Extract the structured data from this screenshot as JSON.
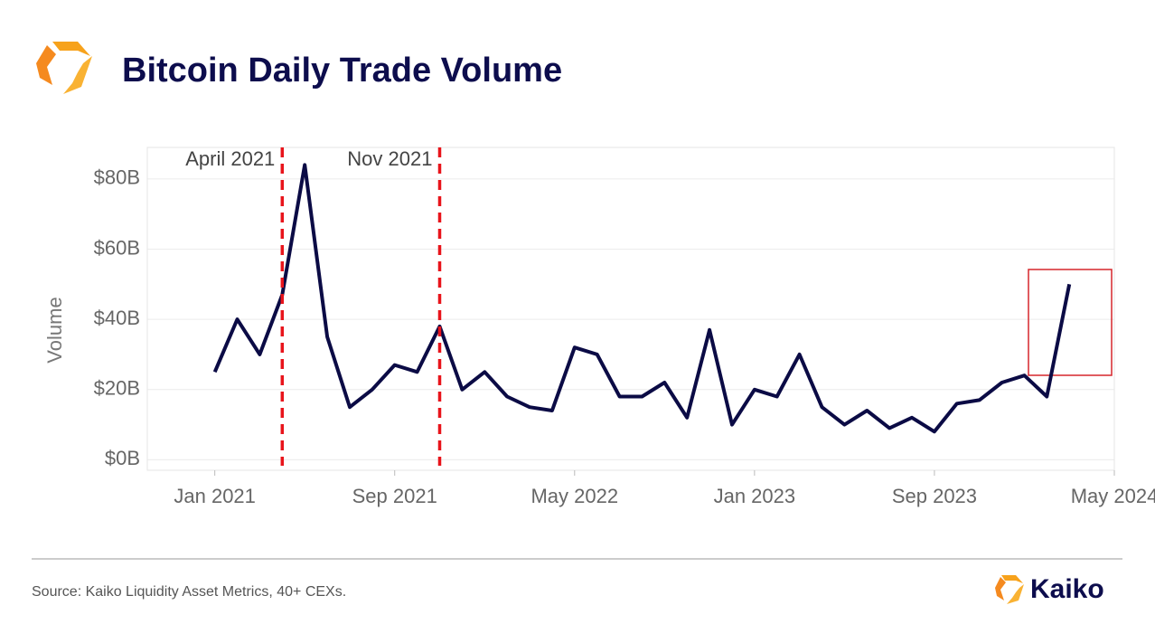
{
  "chart_data": {
    "type": "line",
    "title": "Bitcoin Daily Trade Volume",
    "y_label": "Volume",
    "source": "Source: Kaiko Liquidity Asset Metrics, 40+ CEXs.",
    "brand": "Kaiko",
    "x": [
      "2021-01",
      "2021-02",
      "2021-03",
      "2021-04",
      "2021-05",
      "2021-06",
      "2021-07",
      "2021-08",
      "2021-09",
      "2021-10",
      "2021-11",
      "2021-12",
      "2022-01",
      "2022-02",
      "2022-03",
      "2022-04",
      "2022-05",
      "2022-06",
      "2022-07",
      "2022-08",
      "2022-09",
      "2022-10",
      "2022-11",
      "2022-12",
      "2023-01",
      "2023-02",
      "2023-03",
      "2023-04",
      "2023-05",
      "2023-06",
      "2023-07",
      "2023-08",
      "2023-09",
      "2023-10",
      "2023-11",
      "2023-12",
      "2024-01",
      "2024-02",
      "2024-03"
    ],
    "series": [
      {
        "name": "Volume",
        "color": "#0b0b45",
        "values": [
          25,
          40,
          30,
          47,
          84,
          35,
          15,
          20,
          27,
          25,
          38,
          20,
          25,
          18,
          15,
          14,
          32,
          30,
          18,
          18,
          22,
          12,
          37,
          10,
          20,
          18,
          30,
          15,
          10,
          14,
          9,
          12,
          8,
          16,
          17,
          22,
          24,
          18,
          50
        ]
      }
    ],
    "xlim": [
      "2020-10",
      "2024-05"
    ],
    "xticks": [
      {
        "value": "2021-01",
        "label": "Jan 2021"
      },
      {
        "value": "2021-09",
        "label": "Sep 2021"
      },
      {
        "value": "2022-05",
        "label": "May 2022"
      },
      {
        "value": "2023-01",
        "label": "Jan 2023"
      },
      {
        "value": "2023-09",
        "label": "Sep 2023"
      },
      {
        "value": "2024-05",
        "label": "May 2024"
      }
    ],
    "ylim": [
      -3,
      89
    ],
    "yticks": [
      {
        "value": 0,
        "label": "$0B"
      },
      {
        "value": 20,
        "label": "$20B"
      },
      {
        "value": 40,
        "label": "$40B"
      },
      {
        "value": 60,
        "label": "$60B"
      },
      {
        "value": 80,
        "label": "$80B"
      }
    ],
    "grid": true,
    "annotations": [
      {
        "x": "2021-04",
        "label": "April 2021",
        "color": "#e8141b"
      },
      {
        "x": "2021-11",
        "label": "Nov 2021",
        "color": "#e8141b"
      }
    ]
  }
}
